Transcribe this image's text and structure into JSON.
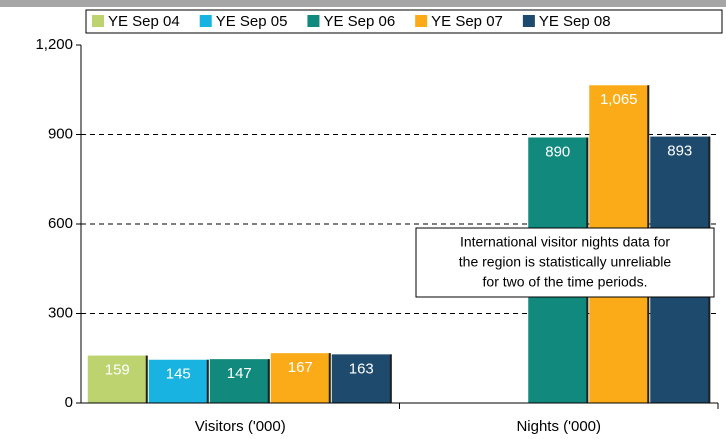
{
  "chart_data": {
    "type": "bar",
    "categories": [
      "Visitors ('000)",
      "Nights ('000)"
    ],
    "series": [
      {
        "name": "YE Sep 04",
        "color": "#bcd36f",
        "values": [
          159,
          null
        ]
      },
      {
        "name": "YE Sep 05",
        "color": "#18b3e0",
        "values": [
          145,
          null
        ]
      },
      {
        "name": "YE Sep 06",
        "color": "#12897d",
        "values": [
          147,
          890
        ]
      },
      {
        "name": "YE Sep 07",
        "color": "#fbab18",
        "values": [
          167,
          1065
        ],
        "value_labels": [
          "167",
          "1,065"
        ]
      },
      {
        "name": "YE Sep 08",
        "color": "#1d4a6d",
        "values": [
          163,
          893
        ]
      }
    ],
    "ylim": [
      0,
      1200
    ],
    "yticks": [
      0,
      300,
      600,
      900,
      {
        "value": 1200,
        "label": "1,200"
      }
    ],
    "grid": true,
    "legend": "top",
    "annotation": [
      "International visitor nights data for",
      "the region is statistically unreliable",
      "for two of the time periods."
    ]
  }
}
